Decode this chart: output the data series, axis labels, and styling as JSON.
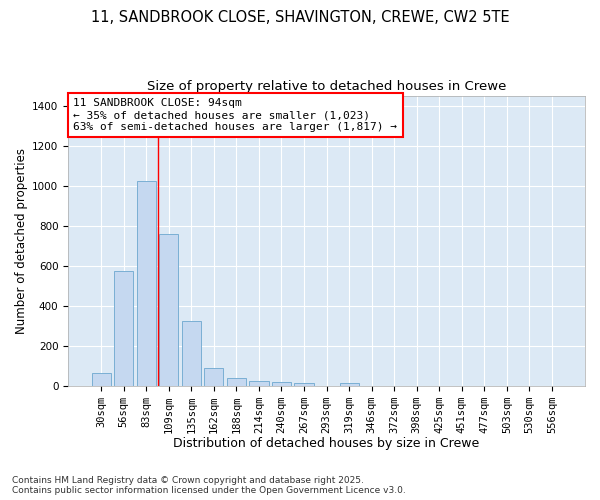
{
  "title1": "11, SANDBROOK CLOSE, SHAVINGTON, CREWE, CW2 5TE",
  "title2": "Size of property relative to detached houses in Crewe",
  "xlabel": "Distribution of detached houses by size in Crewe",
  "ylabel": "Number of detached properties",
  "categories": [
    "30sqm",
    "56sqm",
    "83sqm",
    "109sqm",
    "135sqm",
    "162sqm",
    "188sqm",
    "214sqm",
    "240sqm",
    "267sqm",
    "293sqm",
    "319sqm",
    "346sqm",
    "372sqm",
    "398sqm",
    "425sqm",
    "451sqm",
    "477sqm",
    "503sqm",
    "530sqm",
    "556sqm"
  ],
  "values": [
    65,
    575,
    1025,
    760,
    325,
    90,
    38,
    22,
    18,
    12,
    0,
    15,
    0,
    0,
    0,
    0,
    0,
    0,
    0,
    0,
    0
  ],
  "bar_color": "#c5d8f0",
  "bar_edge_color": "#7aafd4",
  "red_line_x": 2.5,
  "annotation_text": "11 SANDBROOK CLOSE: 94sqm\n← 35% of detached houses are smaller (1,023)\n63% of semi-detached houses are larger (1,817) →",
  "ylim": [
    0,
    1450
  ],
  "yticks": [
    0,
    200,
    400,
    600,
    800,
    1000,
    1200,
    1400
  ],
  "plot_bg_color": "#dce9f5",
  "figure_bg_color": "#ffffff",
  "grid_color": "#ffffff",
  "footer": "Contains HM Land Registry data © Crown copyright and database right 2025.\nContains public sector information licensed under the Open Government Licence v3.0.",
  "title1_fontsize": 10.5,
  "title2_fontsize": 9.5,
  "xlabel_fontsize": 9,
  "ylabel_fontsize": 8.5,
  "tick_fontsize": 7.5,
  "annotation_fontsize": 8,
  "footer_fontsize": 6.5
}
